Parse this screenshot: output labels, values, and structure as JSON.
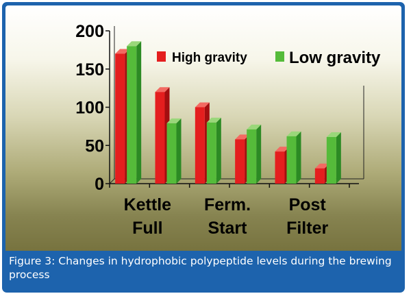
{
  "figure": {
    "caption": "Figure 3: Changes in hydrophobic polypeptide levels during the brewing process"
  },
  "colors": {
    "frame": "#1d63ad",
    "high_front": "#e41e1e",
    "high_side": "#a30e10",
    "high_top": "#f36a62",
    "low_front": "#55bb3a",
    "low_side": "#2c8a24",
    "low_top": "#9ad77a"
  },
  "chart_data": {
    "type": "bar",
    "categories": [
      "Kettle Full",
      "",
      "Ferm. Start",
      "",
      "Post Filter",
      ""
    ],
    "category_labels": [
      {
        "line1": "Kettle",
        "line2": "Full"
      },
      {
        "line1": "Ferm.",
        "line2": "Start"
      },
      {
        "line1": "Post",
        "line2": "Filter"
      }
    ],
    "series": [
      {
        "name": "High gravity",
        "values": [
          170,
          120,
          100,
          58,
          42,
          20
        ]
      },
      {
        "name": "Low gravity",
        "values": [
          180,
          79,
          80,
          71,
          62,
          61
        ]
      }
    ],
    "ylim": [
      0,
      200
    ],
    "yticks": [
      "0",
      "50",
      "100",
      "150",
      "200"
    ],
    "legend_position": "top-right",
    "grid": false,
    "three_d": true
  }
}
